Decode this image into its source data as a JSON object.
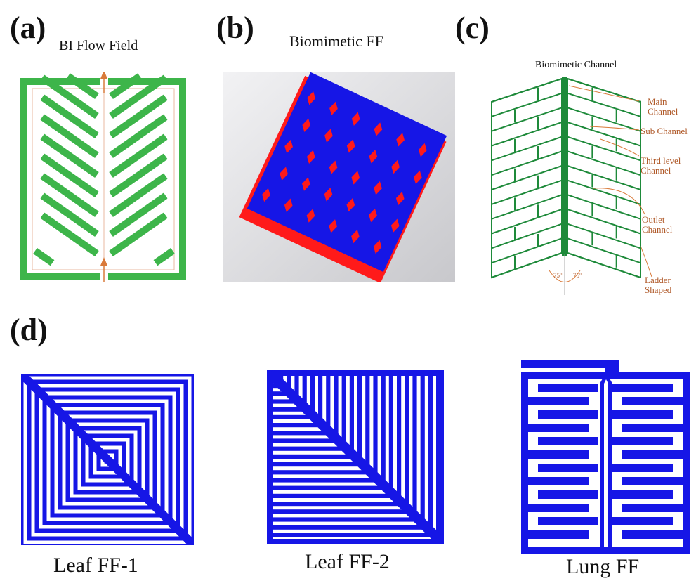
{
  "panels": {
    "a": {
      "label": "(a)",
      "title": "BI  Flow Field"
    },
    "b": {
      "label": "(b)",
      "title": "Biomimetic FF"
    },
    "c": {
      "label": "(c)",
      "title": "Biomimetic  Channel",
      "annotations": {
        "main": "Main Channel",
        "sub": "Sub Channel",
        "third": "Third level Channel",
        "outlet": "Outlet Channel",
        "ladder": "Ladder Shaped",
        "angle_left": "75°",
        "angle_right": "75°"
      }
    },
    "d": {
      "label": "(d)",
      "captions": {
        "leaf1": "Leaf FF-1",
        "leaf2": "Leaf FF-2",
        "lung": "Lung FF"
      }
    }
  },
  "colors": {
    "green": "#3db54a",
    "dark_green": "#1e8a3a",
    "orange": "#d97a3a",
    "blue": "#1616e6",
    "red": "#ff1a1a",
    "gray_bg": "#d8d8dc"
  }
}
